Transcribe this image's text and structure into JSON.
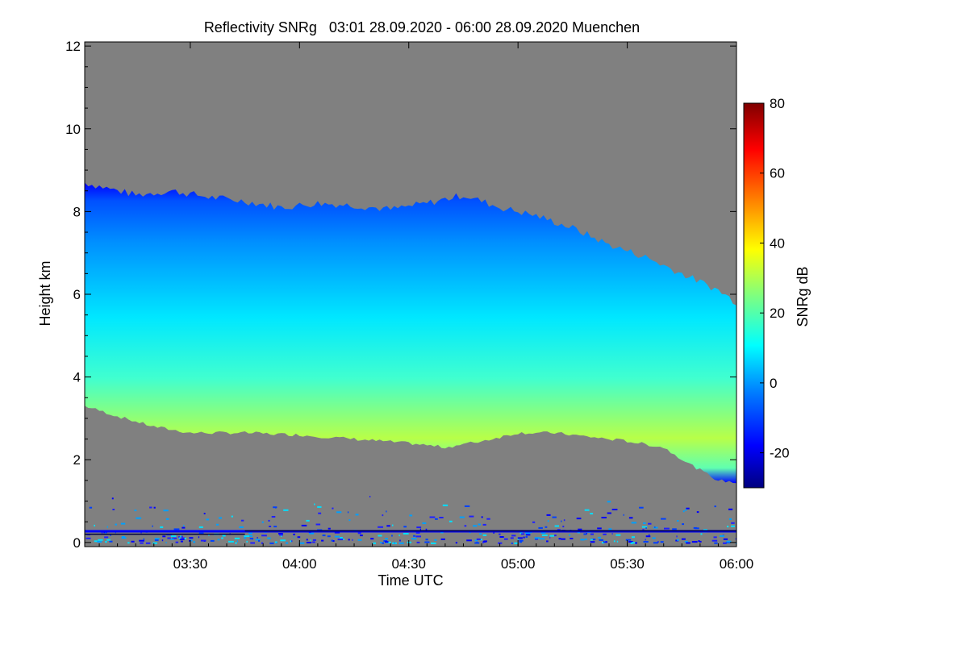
{
  "chart_data": {
    "type": "heatmap",
    "title": "Reflectivity SNRg   03:01 28.09.2020 - 06:00 28.09.2020 Muenchen",
    "xlabel": "Time UTC",
    "ylabel": "Height km",
    "colorbar_label": "SNRg dB",
    "x_ticks": [
      {
        "label": "03:30",
        "minutes_after_0300": 30
      },
      {
        "label": "04:00",
        "minutes_after_0300": 60
      },
      {
        "label": "04:30",
        "minutes_after_0300": 90
      },
      {
        "label": "05:00",
        "minutes_after_0300": 120
      },
      {
        "label": "05:30",
        "minutes_after_0300": 150
      },
      {
        "label": "06:00",
        "minutes_after_0300": 180
      }
    ],
    "x_range_minutes": [
      1,
      180
    ],
    "y_ticks": [
      0,
      2,
      4,
      6,
      8,
      10,
      12
    ],
    "ylim": [
      -0.1,
      12.1
    ],
    "colorbar_ticks": [
      -20,
      0,
      20,
      40,
      60,
      80
    ],
    "colorbar_range": [
      -30,
      80
    ],
    "background_color": "#808080",
    "cloud_layer": {
      "top_km": [
        [
          1,
          8.7
        ],
        [
          15,
          8.4
        ],
        [
          25,
          8.5
        ],
        [
          35,
          8.35
        ],
        [
          45,
          8.25
        ],
        [
          55,
          8.1
        ],
        [
          65,
          8.2
        ],
        [
          75,
          8.15
        ],
        [
          85,
          8.05
        ],
        [
          95,
          8.2
        ],
        [
          105,
          8.4
        ],
        [
          115,
          8.1
        ],
        [
          125,
          7.9
        ],
        [
          135,
          7.6
        ],
        [
          145,
          7.2
        ],
        [
          155,
          6.9
        ],
        [
          165,
          6.5
        ],
        [
          175,
          6.1
        ],
        [
          180,
          5.8
        ]
      ],
      "base_km": [
        [
          1,
          3.3
        ],
        [
          10,
          3.05
        ],
        [
          20,
          2.8
        ],
        [
          30,
          2.65
        ],
        [
          45,
          2.65
        ],
        [
          60,
          2.6
        ],
        [
          75,
          2.5
        ],
        [
          90,
          2.4
        ],
        [
          100,
          2.3
        ],
        [
          110,
          2.45
        ],
        [
          120,
          2.65
        ],
        [
          130,
          2.65
        ],
        [
          140,
          2.55
        ],
        [
          150,
          2.45
        ],
        [
          160,
          2.3
        ],
        [
          168,
          1.85
        ],
        [
          175,
          1.5
        ],
        [
          180,
          1.45
        ]
      ],
      "peak_snr_db": 32,
      "peak_height_km": 3.3
    },
    "colormap": [
      "#00007f",
      "#0000ff",
      "#007fff",
      "#00ffff",
      "#7fff7f",
      "#ffff00",
      "#ff7f00",
      "#ff0000",
      "#7f0000"
    ]
  }
}
